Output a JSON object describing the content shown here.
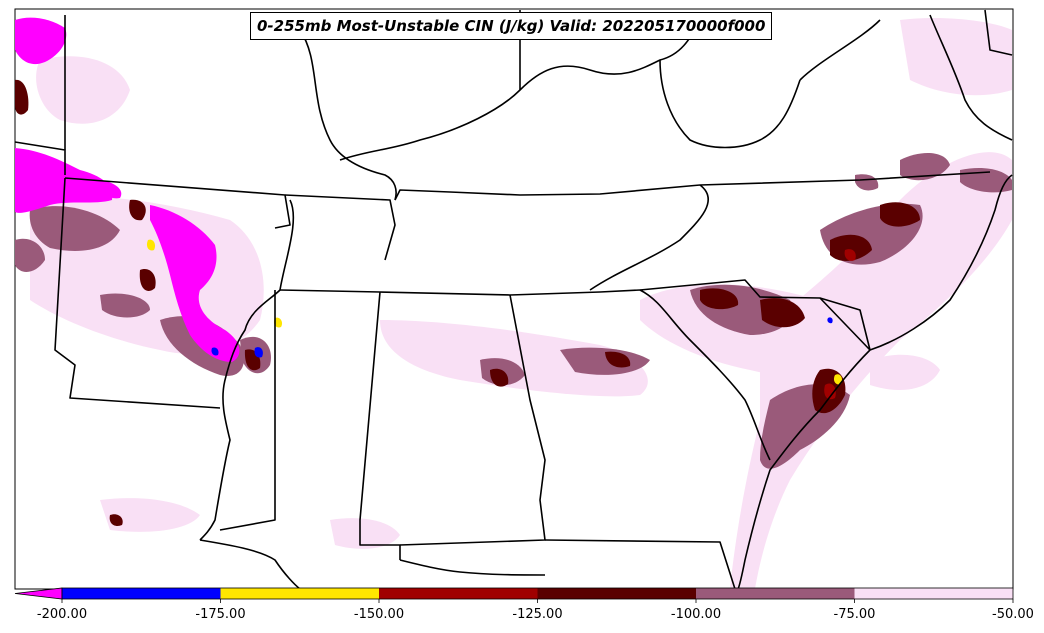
{
  "title": "0-255mb Most-Unstable CIN (J/kg) Valid: 202205170000f000",
  "colorbar": {
    "ticks": [
      "-200.00",
      "-175.00",
      "-150.00",
      "-125.00",
      "-100.00",
      "-75.00",
      "-50.00"
    ],
    "colors": [
      "#0000ff",
      "#ffe600",
      "#a00000",
      "#5a0000",
      "#9a5a7a",
      "#f9e0f5"
    ],
    "extend_color": "#ff00ff",
    "min": -200,
    "max": -50
  },
  "colors": {
    "strongest": "#ff00ff",
    "boundaries": "#000000",
    "background": "#ffffff"
  }
}
